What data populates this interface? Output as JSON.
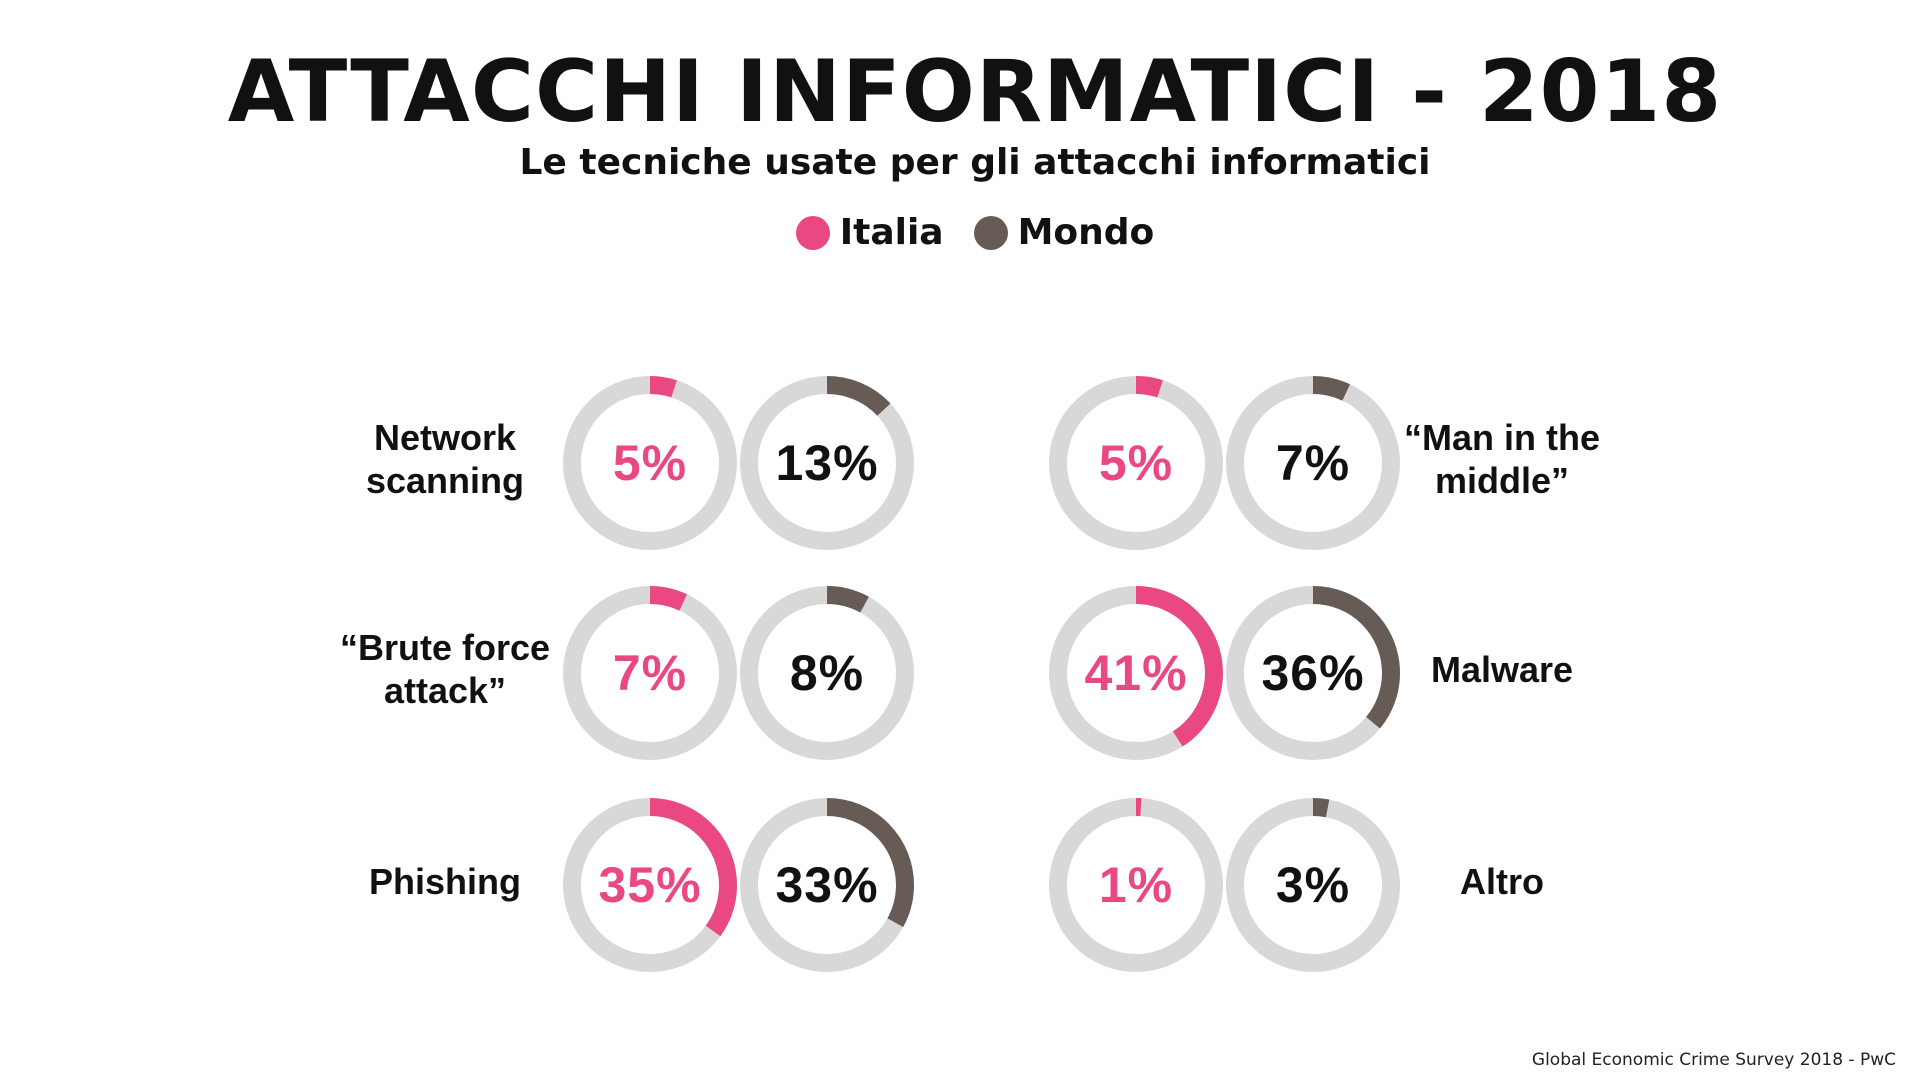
{
  "title": "ATTACCHI INFORMATICI - 2018",
  "subtitle": "Le tecniche usate per gli attacchi informatici",
  "legend": [
    {
      "label": "Italia",
      "color": "#e94882"
    },
    {
      "label": "Mondo",
      "color": "#675c55"
    }
  ],
  "colors": {
    "italia": "#e94882",
    "mondo": "#675c55",
    "track": "#d8d8d8"
  },
  "source": "Global Economic Crime Survey 2018 - PwC",
  "chart_data": {
    "type": "donut",
    "title": "ATTACCHI INFORMATICI - 2018",
    "subtitle": "Le tecniche usate per gli attacchi informatici",
    "series": [
      {
        "name": "Italia",
        "values": [
          5,
          7,
          35,
          5,
          41,
          1
        ]
      },
      {
        "name": "Mondo",
        "values": [
          13,
          8,
          33,
          7,
          36,
          3
        ]
      }
    ],
    "categories": [
      {
        "lines": [
          "Network",
          "scanning"
        ],
        "italia": 5,
        "mondo": 13,
        "italia_label": "5%",
        "mondo_label": "13%"
      },
      {
        "lines": [
          "“Brute force",
          "attack”"
        ],
        "italia": 7,
        "mondo": 8,
        "italia_label": "7%",
        "mondo_label": "8%"
      },
      {
        "lines": [
          "Phishing"
        ],
        "italia": 35,
        "mondo": 33,
        "italia_label": "35%",
        "mondo_label": "33%"
      },
      {
        "lines": [
          "“Man in the",
          "middle”"
        ],
        "italia": 5,
        "mondo": 7,
        "italia_label": "5%",
        "mondo_label": "7%"
      },
      {
        "lines": [
          "Malware"
        ],
        "italia": 41,
        "mondo": 36,
        "italia_label": "41%",
        "mondo_label": "36%"
      },
      {
        "lines": [
          "Altro"
        ],
        "italia": 1,
        "mondo": 3,
        "italia_label": "1%",
        "mondo_label": "3%"
      }
    ],
    "legend_position": "top-center"
  }
}
